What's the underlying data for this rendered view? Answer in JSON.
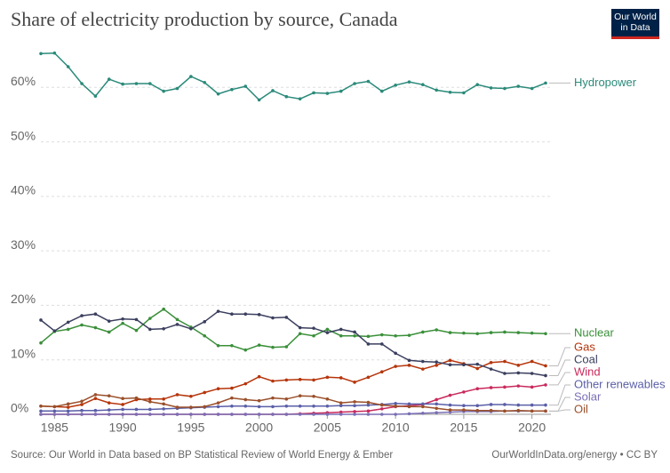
{
  "chart_data": {
    "type": "line",
    "title": "Share of electricity production by source, Canada",
    "logo": "Our World in Data",
    "source": "Source: Our World in Data based on BP Statistical Review of World Energy & Ember",
    "credit": "OurWorldInData.org/energy • CC BY",
    "x": [
      1984,
      1985,
      1986,
      1987,
      1988,
      1989,
      1990,
      1991,
      1992,
      1993,
      1994,
      1995,
      1996,
      1997,
      1998,
      1999,
      2000,
      2001,
      2002,
      2003,
      2004,
      2005,
      2006,
      2007,
      2008,
      2009,
      2010,
      2011,
      2012,
      2013,
      2014,
      2015,
      2016,
      2017,
      2018,
      2019,
      2020,
      2021
    ],
    "xlim": [
      1984,
      2021
    ],
    "xticks": [
      1985,
      1990,
      1995,
      2000,
      2005,
      2010,
      2015,
      2020
    ],
    "ylim": [
      0,
      70
    ],
    "yticks": [
      {
        "value": 0,
        "label": "0%"
      },
      {
        "value": 10,
        "label": "10%"
      },
      {
        "value": 20,
        "label": "20%"
      },
      {
        "value": 30,
        "label": "30%"
      },
      {
        "value": 40,
        "label": "40%"
      },
      {
        "value": 50,
        "label": "50%"
      },
      {
        "value": 60,
        "label": "60%"
      }
    ],
    "grid": true,
    "series": [
      {
        "name": "Hydropower",
        "color": "#2a8a7a",
        "values": [
          66.2,
          66.3,
          63.8,
          60.7,
          58.4,
          61.5,
          60.6,
          60.7,
          60.7,
          59.3,
          59.8,
          62.0,
          60.9,
          58.8,
          59.6,
          60.2,
          57.7,
          59.4,
          58.3,
          57.9,
          59.0,
          58.9,
          59.3,
          60.7,
          61.1,
          59.3,
          60.4,
          61.0,
          60.5,
          59.5,
          59.1,
          59.0,
          60.5,
          59.9,
          59.8,
          60.2,
          59.8,
          60.8
        ]
      },
      {
        "name": "Nuclear",
        "color": "#3a8f3a",
        "values": [
          13.1,
          15.2,
          15.6,
          16.4,
          15.9,
          15.1,
          16.7,
          15.4,
          17.6,
          19.3,
          17.4,
          16.0,
          14.4,
          12.6,
          12.6,
          11.8,
          12.7,
          12.3,
          12.4,
          14.8,
          14.4,
          15.6,
          14.4,
          14.4,
          14.3,
          14.6,
          14.4,
          14.5,
          15.1,
          15.5,
          15.0,
          14.9,
          14.8,
          15.0,
          15.1,
          15.0,
          14.9,
          14.8
        ]
      },
      {
        "name": "Gas",
        "color": "#b5350b",
        "values": [
          1.5,
          1.4,
          1.3,
          1.8,
          2.9,
          2.1,
          1.8,
          2.7,
          2.8,
          2.8,
          3.6,
          3.3,
          4.0,
          4.7,
          4.8,
          5.6,
          6.9,
          6.1,
          6.3,
          6.4,
          6.3,
          6.8,
          6.7,
          5.9,
          6.8,
          7.8,
          8.8,
          9.0,
          8.3,
          9.0,
          9.9,
          9.3,
          8.4,
          9.5,
          9.7,
          9.0,
          9.7,
          8.9
        ]
      },
      {
        "name": "Coal",
        "color": "#3b3f5e",
        "values": [
          17.3,
          15.3,
          16.9,
          18.1,
          18.4,
          17.1,
          17.5,
          17.4,
          15.6,
          15.7,
          16.5,
          15.7,
          17.0,
          18.9,
          18.4,
          18.4,
          18.3,
          17.7,
          17.8,
          15.9,
          15.8,
          15.0,
          15.6,
          15.1,
          12.9,
          12.9,
          11.2,
          9.9,
          9.7,
          9.6,
          9.1,
          9.1,
          9.2,
          8.3,
          7.5,
          7.6,
          7.5,
          7.1
        ]
      },
      {
        "name": "Wind",
        "color": "#c92a5c",
        "values": [
          0,
          0,
          0,
          0,
          0,
          0,
          0,
          0,
          0,
          0,
          0,
          0,
          0,
          0,
          0,
          0,
          0,
          0,
          0,
          0.1,
          0.2,
          0.3,
          0.4,
          0.5,
          0.6,
          1.0,
          1.4,
          1.6,
          1.8,
          2.7,
          3.5,
          4.1,
          4.7,
          4.9,
          5.0,
          5.2,
          5.0,
          5.4
        ]
      },
      {
        "name": "Other renewables",
        "color": "#5a5fa8",
        "values": [
          0.6,
          0.6,
          0.6,
          0.7,
          0.7,
          0.8,
          0.9,
          0.9,
          0.9,
          1.0,
          1.1,
          1.2,
          1.3,
          1.4,
          1.5,
          1.5,
          1.4,
          1.4,
          1.5,
          1.5,
          1.5,
          1.5,
          1.6,
          1.6,
          1.7,
          1.8,
          2.0,
          1.9,
          1.9,
          1.9,
          1.7,
          1.6,
          1.6,
          1.8,
          1.8,
          1.7,
          1.7,
          1.7
        ]
      },
      {
        "name": "Solar",
        "color": "#7a6fb5",
        "values": [
          0,
          0,
          0,
          0,
          0,
          0,
          0,
          0,
          0,
          0,
          0,
          0,
          0,
          0,
          0,
          0,
          0,
          0,
          0,
          0,
          0,
          0,
          0,
          0,
          0,
          0.0,
          0.0,
          0.1,
          0.2,
          0.3,
          0.4,
          0.5,
          0.5,
          0.5,
          0.6,
          0.6,
          0.6,
          0.6
        ]
      },
      {
        "name": "Oil",
        "color": "#9a4f2a",
        "values": [
          1.5,
          1.4,
          1.9,
          2.4,
          3.6,
          3.4,
          2.9,
          3.0,
          2.3,
          1.9,
          1.3,
          1.3,
          1.4,
          2.1,
          3.0,
          2.7,
          2.5,
          3.0,
          2.8,
          3.4,
          3.3,
          2.8,
          2.1,
          2.3,
          2.2,
          1.7,
          1.5,
          1.4,
          1.4,
          1.1,
          0.8,
          0.8,
          0.7,
          0.7,
          0.6,
          0.7,
          0.6,
          0.6
        ]
      }
    ]
  }
}
